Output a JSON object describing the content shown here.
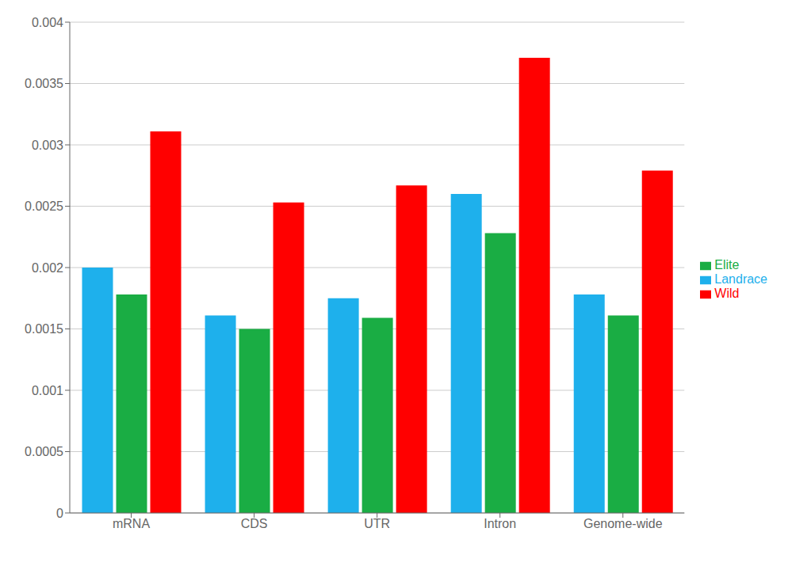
{
  "chart_data": {
    "type": "bar",
    "categories": [
      "mRNA",
      "CDS",
      "UTR",
      "Intron",
      "Genome-wide"
    ],
    "series": [
      {
        "name": "Landrace",
        "color": "#1EB0EC",
        "values": [
          0.002,
          0.00161,
          0.00175,
          0.0026,
          0.00178
        ]
      },
      {
        "name": "Elite",
        "color": "#1AAD44",
        "values": [
          0.00178,
          0.0015,
          0.00159,
          0.00228,
          0.00161
        ]
      },
      {
        "name": "Wild",
        "color": "#FF0000",
        "values": [
          0.00311,
          0.00253,
          0.00267,
          0.00371,
          0.00279
        ]
      }
    ],
    "ylim": [
      0,
      0.004
    ],
    "yticks": [
      0,
      0.0005,
      0.001,
      0.0015,
      0.002,
      0.0025,
      0.003,
      0.0035,
      0.004
    ],
    "grid": true,
    "legend": "right"
  }
}
